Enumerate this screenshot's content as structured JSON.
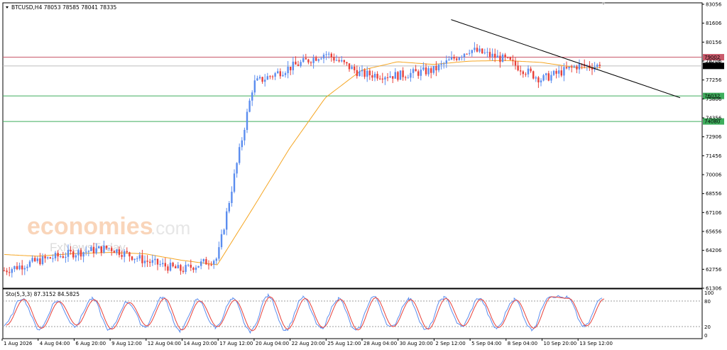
{
  "header": {
    "symbol_line": "BTCUSD,H4  78053 78585 78041 78335",
    "stoch_label": "Sto(5,3,3) 87.3152 84.5825"
  },
  "watermark": {
    "brand": "economies",
    "suffix": ".com",
    "sub": "FxNewsToday"
  },
  "colors": {
    "bull": "#5b8def",
    "bear": "#e8413a",
    "ma": "#f5a623",
    "resistance": "#c95a6b",
    "support": "#3fae5d",
    "trendline": "#000000",
    "stoch_main": "#5b8def",
    "stoch_signal": "#e8413a",
    "current_tag": "#000000"
  },
  "chart_data": [
    {
      "type": "candlestick",
      "title": "BTCUSD,H4",
      "ohlc_last": {
        "open": 78053,
        "high": 78585,
        "low": 78041,
        "close": 78335
      },
      "y_ticks": [
        83056,
        81606,
        80156,
        78706,
        77256,
        75806,
        74356,
        72906,
        71456,
        70006,
        68556,
        67106,
        65656,
        64206,
        62756,
        61306
      ],
      "y_tick_labels": [
        "83056",
        "81606",
        "80156",
        "78706",
        "77256",
        "75806",
        "74356",
        "72906",
        "71456",
        "70006",
        "68556",
        "67106",
        "65656",
        "64206",
        "62756",
        "61306"
      ],
      "ylim": [
        61306,
        83056
      ],
      "x_tick_labels": [
        "1 Aug 2026",
        "4 Aug 04:00",
        "6 Aug 20:00",
        "9 Aug 12:00",
        "12 Aug 04:00",
        "14 Aug 20:00",
        "17 Aug 12:00",
        "20 Aug 04:00",
        "22 Aug 20:00",
        "25 Aug 12:00",
        "28 Aug 04:00",
        "30 Aug 20:00",
        "2 Sep 12:00",
        "5 Sep 04:00",
        "8 Sep 04:00",
        "10 Sep 20:00",
        "13 Sep 12:00"
      ],
      "horizontal_levels": [
        {
          "role": "resistance",
          "value": 79002,
          "label": "79002"
        },
        {
          "role": "support",
          "value": 76032,
          "label": "76032"
        },
        {
          "role": "support",
          "value": 74080,
          "label": "74080"
        }
      ],
      "current_price": {
        "value": 78335,
        "label": "78335"
      },
      "secondary_tag": "78530",
      "trendline": {
        "from": {
          "x": "2 Sep 12:00",
          "y": 81880
        },
        "to": {
          "x": "15 Sep",
          "y": 75900
        }
      },
      "moving_average_points": [
        [
          "1 Aug 2026",
          63900
        ],
        [
          "4 Aug 04:00",
          63760
        ],
        [
          "6 Aug 20:00",
          63960
        ],
        [
          "9 Aug 12:00",
          64050
        ],
        [
          "12 Aug 04:00",
          63940
        ],
        [
          "14 Aug 20:00",
          63450
        ],
        [
          "17 Aug 12:00",
          63100
        ],
        [
          "20 Aug 04:00",
          67500
        ],
        [
          "22 Aug 20:00",
          72000
        ],
        [
          "25 Aug 12:00",
          75900
        ],
        [
          "28 Aug 04:00",
          78000
        ],
        [
          "30 Aug 20:00",
          78650
        ],
        [
          "2 Sep 12:00",
          78450
        ],
        [
          "5 Sep 04:00",
          78700
        ],
        [
          "8 Sep 04:00",
          78750
        ],
        [
          "10 Sep 20:00",
          78600
        ],
        [
          "13 Sep 12:00",
          78200
        ]
      ],
      "price_path_points": [
        [
          "1 Aug 2026",
          62600
        ],
        [
          "4 Aug 04:00",
          63400
        ],
        [
          "6 Aug 20:00",
          64000
        ],
        [
          "9 Aug 12:00",
          64400
        ],
        [
          "12 Aug 04:00",
          63400
        ],
        [
          "14 Aug 20:00",
          62700
        ],
        [
          "17 Aug 12:00",
          63600
        ],
        [
          "20 Aug 04:00",
          77000
        ],
        [
          "22 Aug 20:00",
          78200
        ],
        [
          "25 Aug 12:00",
          79300
        ],
        [
          "28 Aug 04:00",
          77700
        ],
        [
          "30 Aug 20:00",
          77600
        ],
        [
          "2 Sep 12:00",
          78000
        ],
        [
          "5 Sep 04:00",
          79600
        ],
        [
          "8 Sep 04:00",
          78800
        ],
        [
          "10 Sep 20:00",
          77300
        ],
        [
          "13 Sep 12:00",
          78335
        ]
      ]
    },
    {
      "type": "line",
      "title": "Sto(5,3,3)",
      "values_last": {
        "main": 87.3152,
        "signal": 84.5825
      },
      "ylim": [
        0,
        100
      ],
      "y_tick_labels": [
        "100",
        "80",
        "20",
        "0"
      ],
      "levels": [
        80,
        20
      ],
      "cycle_peaks_troughs": [
        22,
        86,
        14,
        80,
        22,
        85,
        12,
        78,
        20,
        88,
        10,
        82,
        18,
        84,
        8,
        92,
        12,
        88,
        16,
        86,
        10,
        90,
        18,
        85,
        12,
        88,
        20,
        86,
        16,
        84,
        14,
        92,
        88,
        20,
        87
      ]
    }
  ]
}
